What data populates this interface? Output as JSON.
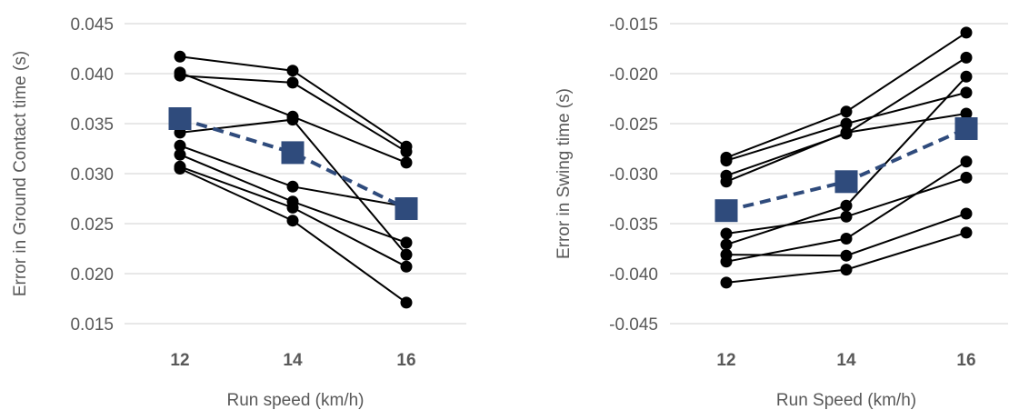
{
  "chart_data": [
    {
      "type": "line",
      "xlabel": "Run speed (km/h)",
      "ylabel": "Error in Ground Contact time (s)",
      "categories": [
        "12",
        "14",
        "16"
      ],
      "ylim": [
        0.015,
        0.045
      ],
      "yticks": [
        "0.015",
        "0.020",
        "0.025",
        "0.030",
        "0.035",
        "0.040",
        "0.045"
      ],
      "grid": "horizontal",
      "individuals": [
        [
          0.0417,
          0.0403,
          0.0327
        ],
        [
          0.0401,
          0.0357,
          0.0311
        ],
        [
          0.0398,
          0.0391,
          0.0322
        ],
        [
          0.0341,
          0.0354,
          0.0219
        ],
        [
          0.0328,
          0.0287,
          0.0267
        ],
        [
          0.0319,
          0.0272,
          0.0231
        ],
        [
          0.0307,
          0.0266,
          0.0207
        ],
        [
          0.0305,
          0.0253,
          0.0171
        ]
      ],
      "mean": [
        0.0355,
        0.0321,
        0.0265
      ],
      "colors": {
        "individual": "#000000",
        "mean": "#2F4B7C"
      }
    },
    {
      "type": "line",
      "xlabel": "Run Speed (km/h)",
      "ylabel": "Error in Swing time (s)",
      "categories": [
        "12",
        "14",
        "16"
      ],
      "ylim": [
        -0.045,
        -0.015
      ],
      "yticks": [
        "-0.045",
        "-0.040",
        "-0.035",
        "-0.030",
        "-0.025",
        "-0.020",
        "-0.015"
      ],
      "grid": "horizontal",
      "individuals": [
        [
          -0.0284,
          -0.0238,
          -0.0159
        ],
        [
          -0.0287,
          -0.025,
          -0.0219
        ],
        [
          -0.0302,
          -0.026,
          -0.0184
        ],
        [
          -0.0308,
          -0.0259,
          -0.024
        ],
        [
          -0.036,
          -0.0343,
          -0.0304
        ],
        [
          -0.0371,
          -0.0332,
          -0.0203
        ],
        [
          -0.0381,
          -0.0382,
          -0.034
        ],
        [
          -0.0388,
          -0.0365,
          -0.0288
        ],
        [
          -0.0409,
          -0.0396,
          -0.0359
        ]
      ],
      "mean": [
        -0.0337,
        -0.0308,
        -0.0255
      ],
      "colors": {
        "individual": "#000000",
        "mean": "#2F4B7C"
      }
    }
  ]
}
